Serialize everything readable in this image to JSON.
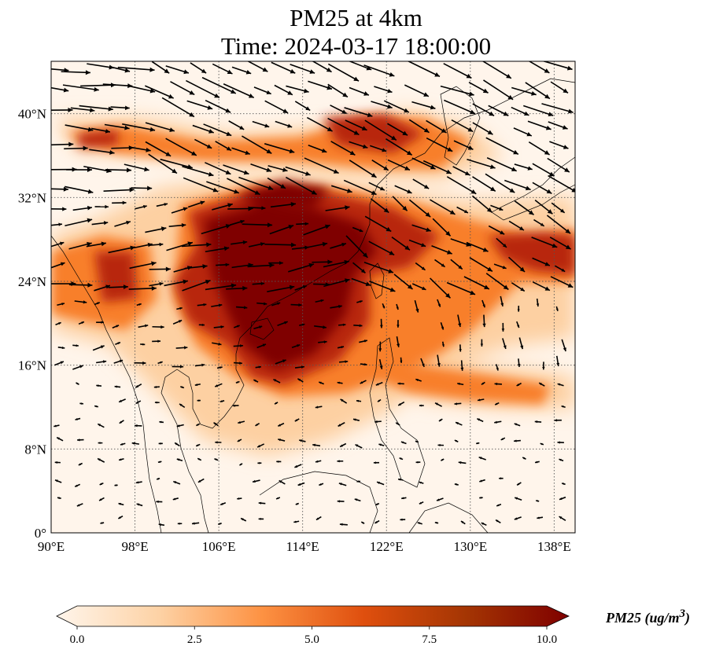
{
  "title": {
    "line1": "PM25 at 4km",
    "line2": "Time: 2024-03-17 18:00:00"
  },
  "map": {
    "lon_range": [
      90,
      140
    ],
    "lat_range": [
      0,
      45
    ],
    "lon_ticks": [
      {
        "value": 90,
        "label": "90°E"
      },
      {
        "value": 98,
        "label": "98°E"
      },
      {
        "value": 106,
        "label": "106°E"
      },
      {
        "value": 114,
        "label": "114°E"
      },
      {
        "value": 122,
        "label": "122°E"
      },
      {
        "value": 130,
        "label": "130°E"
      },
      {
        "value": 138,
        "label": "138°E"
      }
    ],
    "lat_ticks": [
      {
        "value": 0,
        "label": "0°"
      },
      {
        "value": 8,
        "label": "8°N"
      },
      {
        "value": 16,
        "label": "16°N"
      },
      {
        "value": 24,
        "label": "24°N"
      },
      {
        "value": 32,
        "label": "32°N"
      },
      {
        "value": 40,
        "label": "40°N"
      }
    ],
    "gridlines": "dotted",
    "background_color": "#fff5eb",
    "vector_color": "#000000"
  },
  "colorbar": {
    "label": "PM25 (ug/m",
    "label_sup": "3",
    "label_close": ")",
    "min": 0.0,
    "max": 10.0,
    "ticks": [
      "0.0",
      "2.5",
      "5.0",
      "7.5",
      "10.0"
    ],
    "extend": "both",
    "colormap_stops": [
      "#fff5eb",
      "#fdd2a5",
      "#fd9243",
      "#df4f0e",
      "#a43503",
      "#7f0000"
    ]
  }
}
